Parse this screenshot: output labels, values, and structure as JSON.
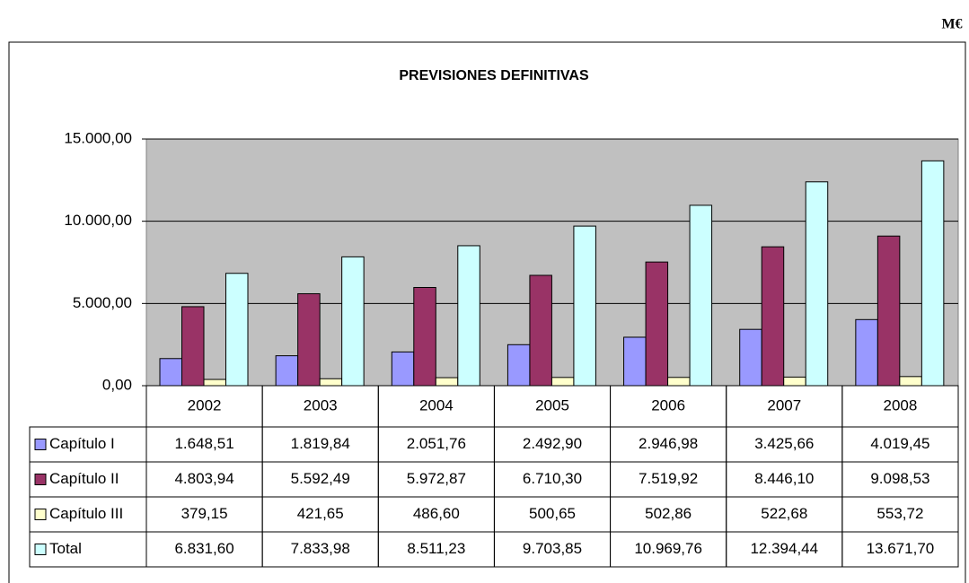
{
  "unit": "M€",
  "chart_data": {
    "type": "bar",
    "title": "PREVISIONES DEFINITIVAS",
    "categories": [
      "2002",
      "2003",
      "2004",
      "2005",
      "2006",
      "2007",
      "2008"
    ],
    "series": [
      {
        "name": "Capítulo I",
        "color": "#9999ff",
        "values": [
          1648.51,
          1819.84,
          2051.76,
          2492.9,
          2946.98,
          3425.66,
          4019.45
        ],
        "value_labels": [
          "1.648,51",
          "1.819,84",
          "2.051,76",
          "2.492,90",
          "2.946,98",
          "3.425,66",
          "4.019,45"
        ]
      },
      {
        "name": "Capítulo II",
        "color": "#993366",
        "values": [
          4803.94,
          5592.49,
          5972.87,
          6710.3,
          7519.92,
          8446.1,
          9098.53
        ],
        "value_labels": [
          "4.803,94",
          "5.592,49",
          "5.972,87",
          "6.710,30",
          "7.519,92",
          "8.446,10",
          "9.098,53"
        ]
      },
      {
        "name": "Capítulo III",
        "color": "#ffffcc",
        "values": [
          379.15,
          421.65,
          486.6,
          500.65,
          502.86,
          522.68,
          553.72
        ],
        "value_labels": [
          "379,15",
          "421,65",
          "486,60",
          "500,65",
          "502,86",
          "522,68",
          "553,72"
        ]
      },
      {
        "name": "Total",
        "color": "#ccffff",
        "values": [
          6831.6,
          7833.98,
          8511.23,
          9703.85,
          10969.76,
          12394.44,
          13671.7
        ],
        "value_labels": [
          "6.831,60",
          "7.833,98",
          "8.511,23",
          "9.703,85",
          "10.969,76",
          "12.394,44",
          "13.671,70"
        ]
      }
    ],
    "ylim": [
      0,
      15000
    ],
    "yticks": [
      {
        "value": 0,
        "label": "0,00"
      },
      {
        "value": 5000,
        "label": "5.000,00"
      },
      {
        "value": 10000,
        "label": "10.000,00"
      },
      {
        "value": 15000,
        "label": "15.000,00"
      }
    ],
    "grid": true,
    "plot_background": "#c0c0c0"
  }
}
